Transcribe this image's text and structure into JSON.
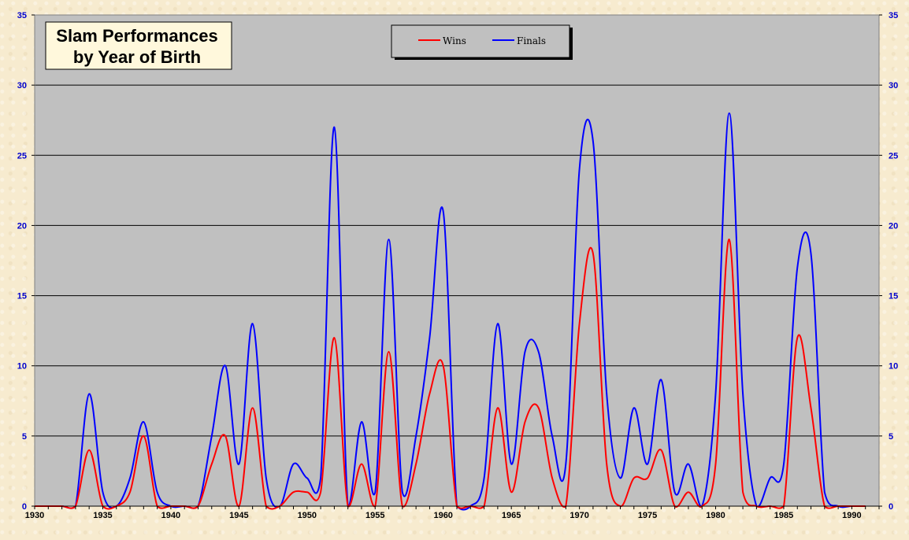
{
  "chart_data": {
    "type": "line",
    "title_lines": [
      "Slam Performances",
      "by Year of Birth"
    ],
    "xlabel": "",
    "ylabel": "",
    "x": [
      1930,
      1931,
      1932,
      1933,
      1934,
      1935,
      1936,
      1937,
      1938,
      1939,
      1940,
      1941,
      1942,
      1943,
      1944,
      1945,
      1946,
      1947,
      1948,
      1949,
      1950,
      1951,
      1952,
      1953,
      1954,
      1955,
      1956,
      1957,
      1958,
      1959,
      1960,
      1961,
      1962,
      1963,
      1964,
      1965,
      1966,
      1967,
      1968,
      1969,
      1970,
      1971,
      1972,
      1973,
      1974,
      1975,
      1976,
      1977,
      1978,
      1979,
      1980,
      1981,
      1982,
      1983,
      1984,
      1985,
      1986,
      1987,
      1988,
      1989,
      1990,
      1991
    ],
    "xlim": [
      1930,
      1992
    ],
    "xticks": [
      1930,
      1935,
      1940,
      1945,
      1950,
      1955,
      1960,
      1965,
      1970,
      1975,
      1980,
      1985,
      1990
    ],
    "ylim": [
      0,
      35
    ],
    "yticks": [
      0,
      5,
      10,
      15,
      20,
      25,
      30,
      35
    ],
    "grid": true,
    "legend_position": "top-center",
    "series": [
      {
        "name": "Wins",
        "color": "#ff0000",
        "values": [
          0,
          0,
          0,
          0,
          4,
          0,
          0,
          1,
          5,
          0,
          0,
          0,
          0,
          3,
          5,
          0,
          7,
          0,
          0,
          1,
          1,
          1,
          12,
          0,
          3,
          0,
          11,
          0,
          3,
          8,
          10,
          0,
          0,
          0,
          7,
          1,
          6,
          7,
          2,
          0,
          13,
          18,
          3,
          0,
          2,
          2,
          4,
          0,
          1,
          0,
          3,
          19,
          1,
          0,
          0,
          0,
          12,
          7,
          0,
          0,
          0,
          0
        ]
      },
      {
        "name": "Finals",
        "color": "#0000ff",
        "values": [
          0,
          0,
          0,
          0,
          8,
          1,
          0,
          2,
          6,
          1,
          0,
          0,
          0,
          5,
          10,
          3,
          13,
          2,
          0,
          3,
          2,
          2,
          27,
          0,
          6,
          1,
          19,
          1,
          5,
          12,
          21,
          0,
          0,
          2,
          13,
          3,
          11,
          11,
          5,
          3,
          24,
          26,
          8,
          2,
          7,
          3,
          9,
          1,
          3,
          0,
          8,
          28,
          8,
          0,
          2,
          3,
          17,
          18,
          1,
          0,
          0,
          0
        ]
      }
    ]
  }
}
